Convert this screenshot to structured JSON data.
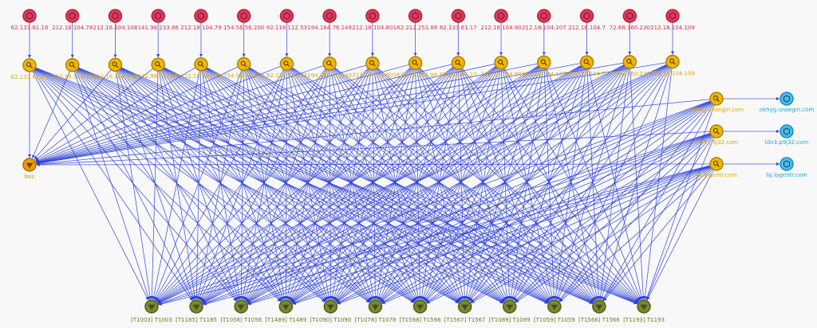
{
  "malware_node": {
    "label": "bec"
  },
  "ip_nodes": [
    {
      "label": "62.133.61.18"
    },
    {
      "label": "212.18.104.78"
    },
    {
      "label": "212.18.104.108"
    },
    {
      "label": "141.98.233.86"
    },
    {
      "label": "212.18.104.79"
    },
    {
      "label": "154.56.56.200"
    },
    {
      "label": "92.118.112.53"
    },
    {
      "label": "194.164.76.149"
    },
    {
      "label": "212.18.104.80"
    },
    {
      "label": "162.212.251.86"
    },
    {
      "label": "62.133.61.17"
    },
    {
      "label": "212.18.104.90"
    },
    {
      "label": "212.18.104.107"
    },
    {
      "label": "212.18.104.7"
    },
    {
      "label": "72.68.160.230"
    },
    {
      "label": "212.18.104.109"
    }
  ],
  "indicator_nodes": [
    {
      "label": "62.133.61.18"
    },
    {
      "label": "212.18.104.78"
    },
    {
      "label": "212.18.104.108"
    },
    {
      "label": "141.98.233.86"
    },
    {
      "label": "212.18.104.79"
    },
    {
      "label": "154.56.56.200"
    },
    {
      "label": "92.118.112.53"
    },
    {
      "label": "194.164.76.149"
    },
    {
      "label": "212.18.104.80"
    },
    {
      "label": "162.212.251.86"
    },
    {
      "label": "62.133.61.17"
    },
    {
      "label": "212.18.104.90"
    },
    {
      "label": "212.18.104.107"
    },
    {
      "label": "212.18.104.7"
    },
    {
      "label": "72.68.160.230"
    },
    {
      "label": "212.18.104.109"
    }
  ],
  "domain_indicators": [
    {
      "label": "okhyg.unsegin.com"
    },
    {
      "label": "ldn3.p9j32.com"
    },
    {
      "label": "lsj.logentr.com"
    }
  ],
  "domain_nodes": [
    {
      "label": "okhyg.unsegin.com"
    },
    {
      "label": "ldn3.p9j32.com"
    },
    {
      "label": "lsj.logentr.com"
    }
  ],
  "technique_nodes": [
    {
      "label": "[T1003] T1003"
    },
    {
      "label": "[T1185] T1185"
    },
    {
      "label": "[T1056] T1056"
    },
    {
      "label": "[T1489] T1489"
    },
    {
      "label": "[T1090] T1090"
    },
    {
      "label": "[T1078] T1078"
    },
    {
      "label": "[T1598] T1598"
    },
    {
      "label": "[T1567] T1567"
    },
    {
      "label": "[T1089] T1089"
    },
    {
      "label": "[T1059] T1059"
    },
    {
      "label": "[T1566] T1566"
    },
    {
      "label": "[T1193] T1193"
    }
  ]
}
